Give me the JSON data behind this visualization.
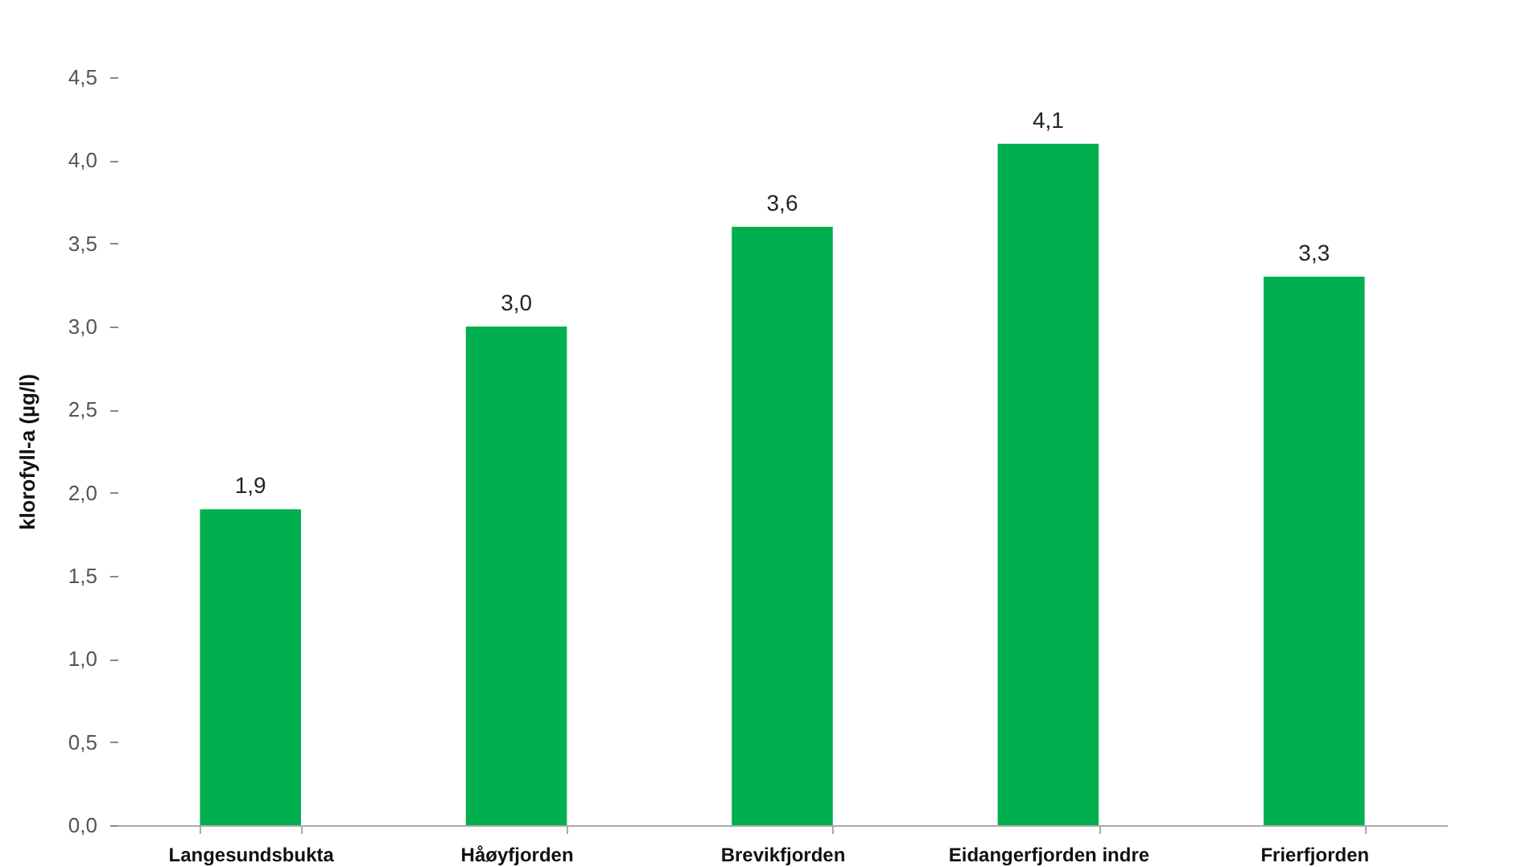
{
  "chart_data": {
    "type": "bar",
    "ylabel": "klorofyll-a (µg/l)",
    "categories": [
      "Langesundsbukta",
      "Håøyfjorden",
      "Brevikfjorden",
      "Eidangerfjorden indre",
      "Frierfjorden"
    ],
    "values": [
      1.9,
      3.0,
      3.6,
      4.1,
      3.3
    ],
    "value_labels": [
      "1,9",
      "3,0",
      "3,6",
      "4,1",
      "3,3"
    ],
    "color": "#00b050",
    "ylim": [
      0,
      4.5
    ],
    "yticks": [
      {
        "value": 0,
        "label": "0,0"
      },
      {
        "value": 0.5,
        "label": "0,5"
      },
      {
        "value": 1,
        "label": "1,0"
      },
      {
        "value": 1.5,
        "label": "1,5"
      },
      {
        "value": 2,
        "label": "2,0"
      },
      {
        "value": 2.5,
        "label": "2,5"
      },
      {
        "value": 3,
        "label": "3,0"
      },
      {
        "value": 3.5,
        "label": "3,5"
      },
      {
        "value": 4,
        "label": "4,0"
      },
      {
        "value": 4.5,
        "label": "4,5"
      }
    ],
    "grid": false
  }
}
